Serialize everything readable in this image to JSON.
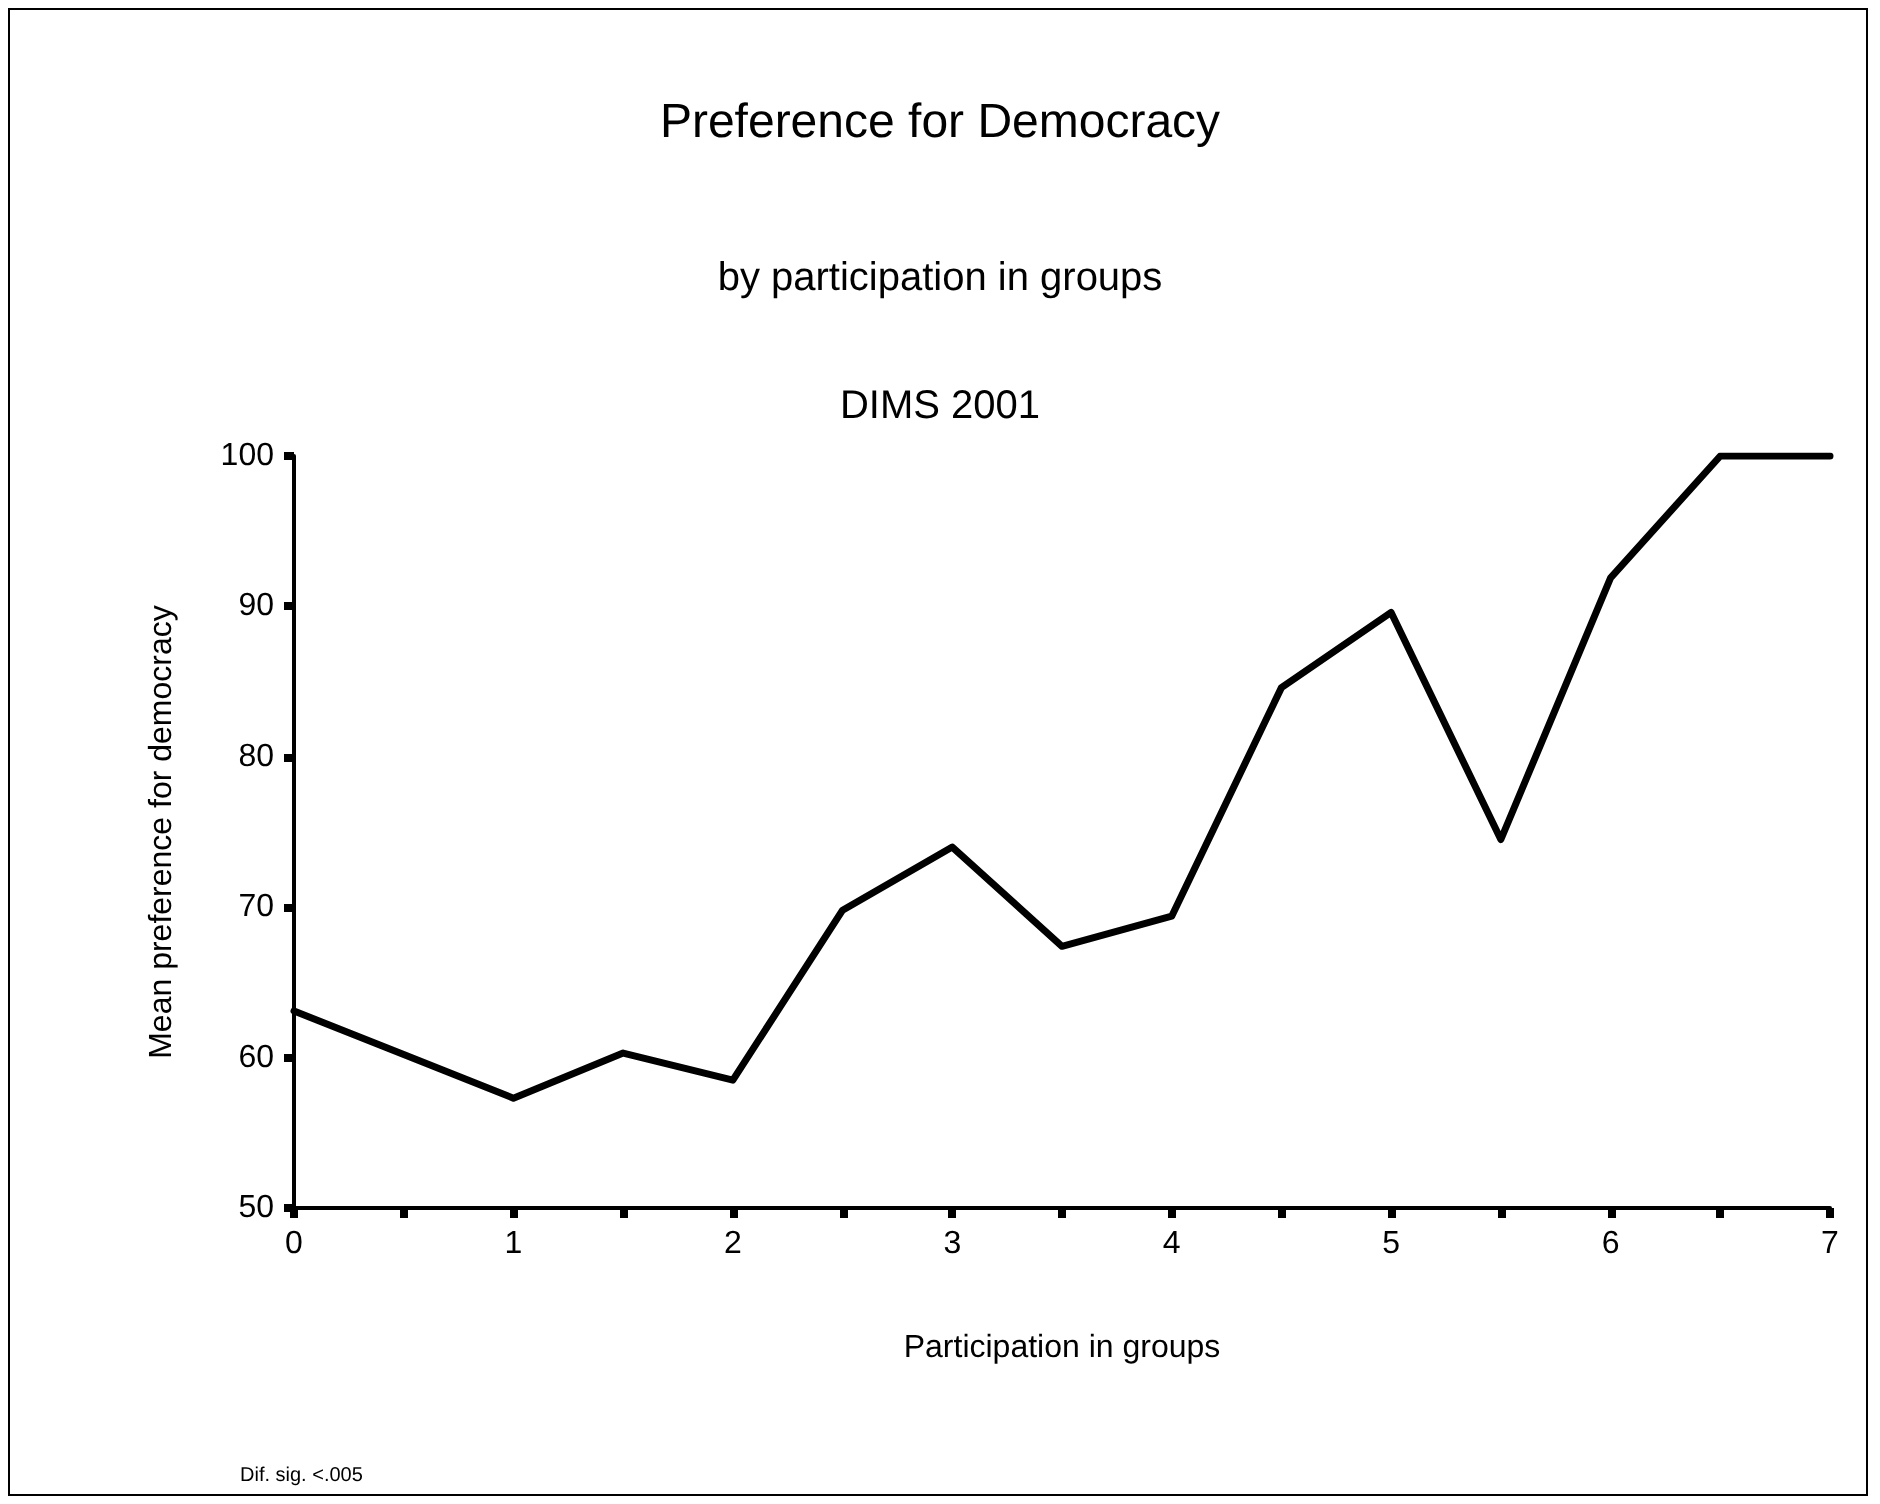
{
  "chart_data": {
    "type": "line",
    "title": "Preference for Democracy",
    "subtitle": "by participation in groups\nDIMS 2001",
    "xlabel": "Participation in groups",
    "ylabel": "Mean preference for democracy",
    "annotations": [
      "Dif. sig. <.005"
    ],
    "x": [
      0,
      0.5,
      1,
      1.5,
      2,
      2.5,
      3,
      3.5,
      4,
      4.5,
      5,
      5.5,
      6,
      6.5,
      7
    ],
    "series": [
      {
        "color": "#000000",
        "values": [
          63.1,
          60.2,
          57.3,
          60.3,
          58.5,
          69.8,
          74.0,
          67.4,
          69.4,
          84.6,
          89.6,
          74.5,
          91.9,
          100,
          100
        ]
      }
    ],
    "xlim": [
      0,
      7
    ],
    "xticks": [
      0,
      {
        "value": 0.5,
        "label": null
      },
      1,
      {
        "value": 1.5,
        "label": null
      },
      2,
      {
        "value": 2.5,
        "label": null
      },
      3,
      {
        "value": 3.5,
        "label": null
      },
      4,
      {
        "value": 4.5,
        "label": null
      },
      5,
      {
        "value": 5.5,
        "label": null
      },
      6,
      {
        "value": 6.5,
        "label": null
      },
      7
    ],
    "ylim": [
      50,
      100
    ],
    "yticks": [
      50,
      60,
      70,
      80,
      90,
      100
    ],
    "grid": false,
    "marker": "none",
    "line_style": "solid"
  }
}
